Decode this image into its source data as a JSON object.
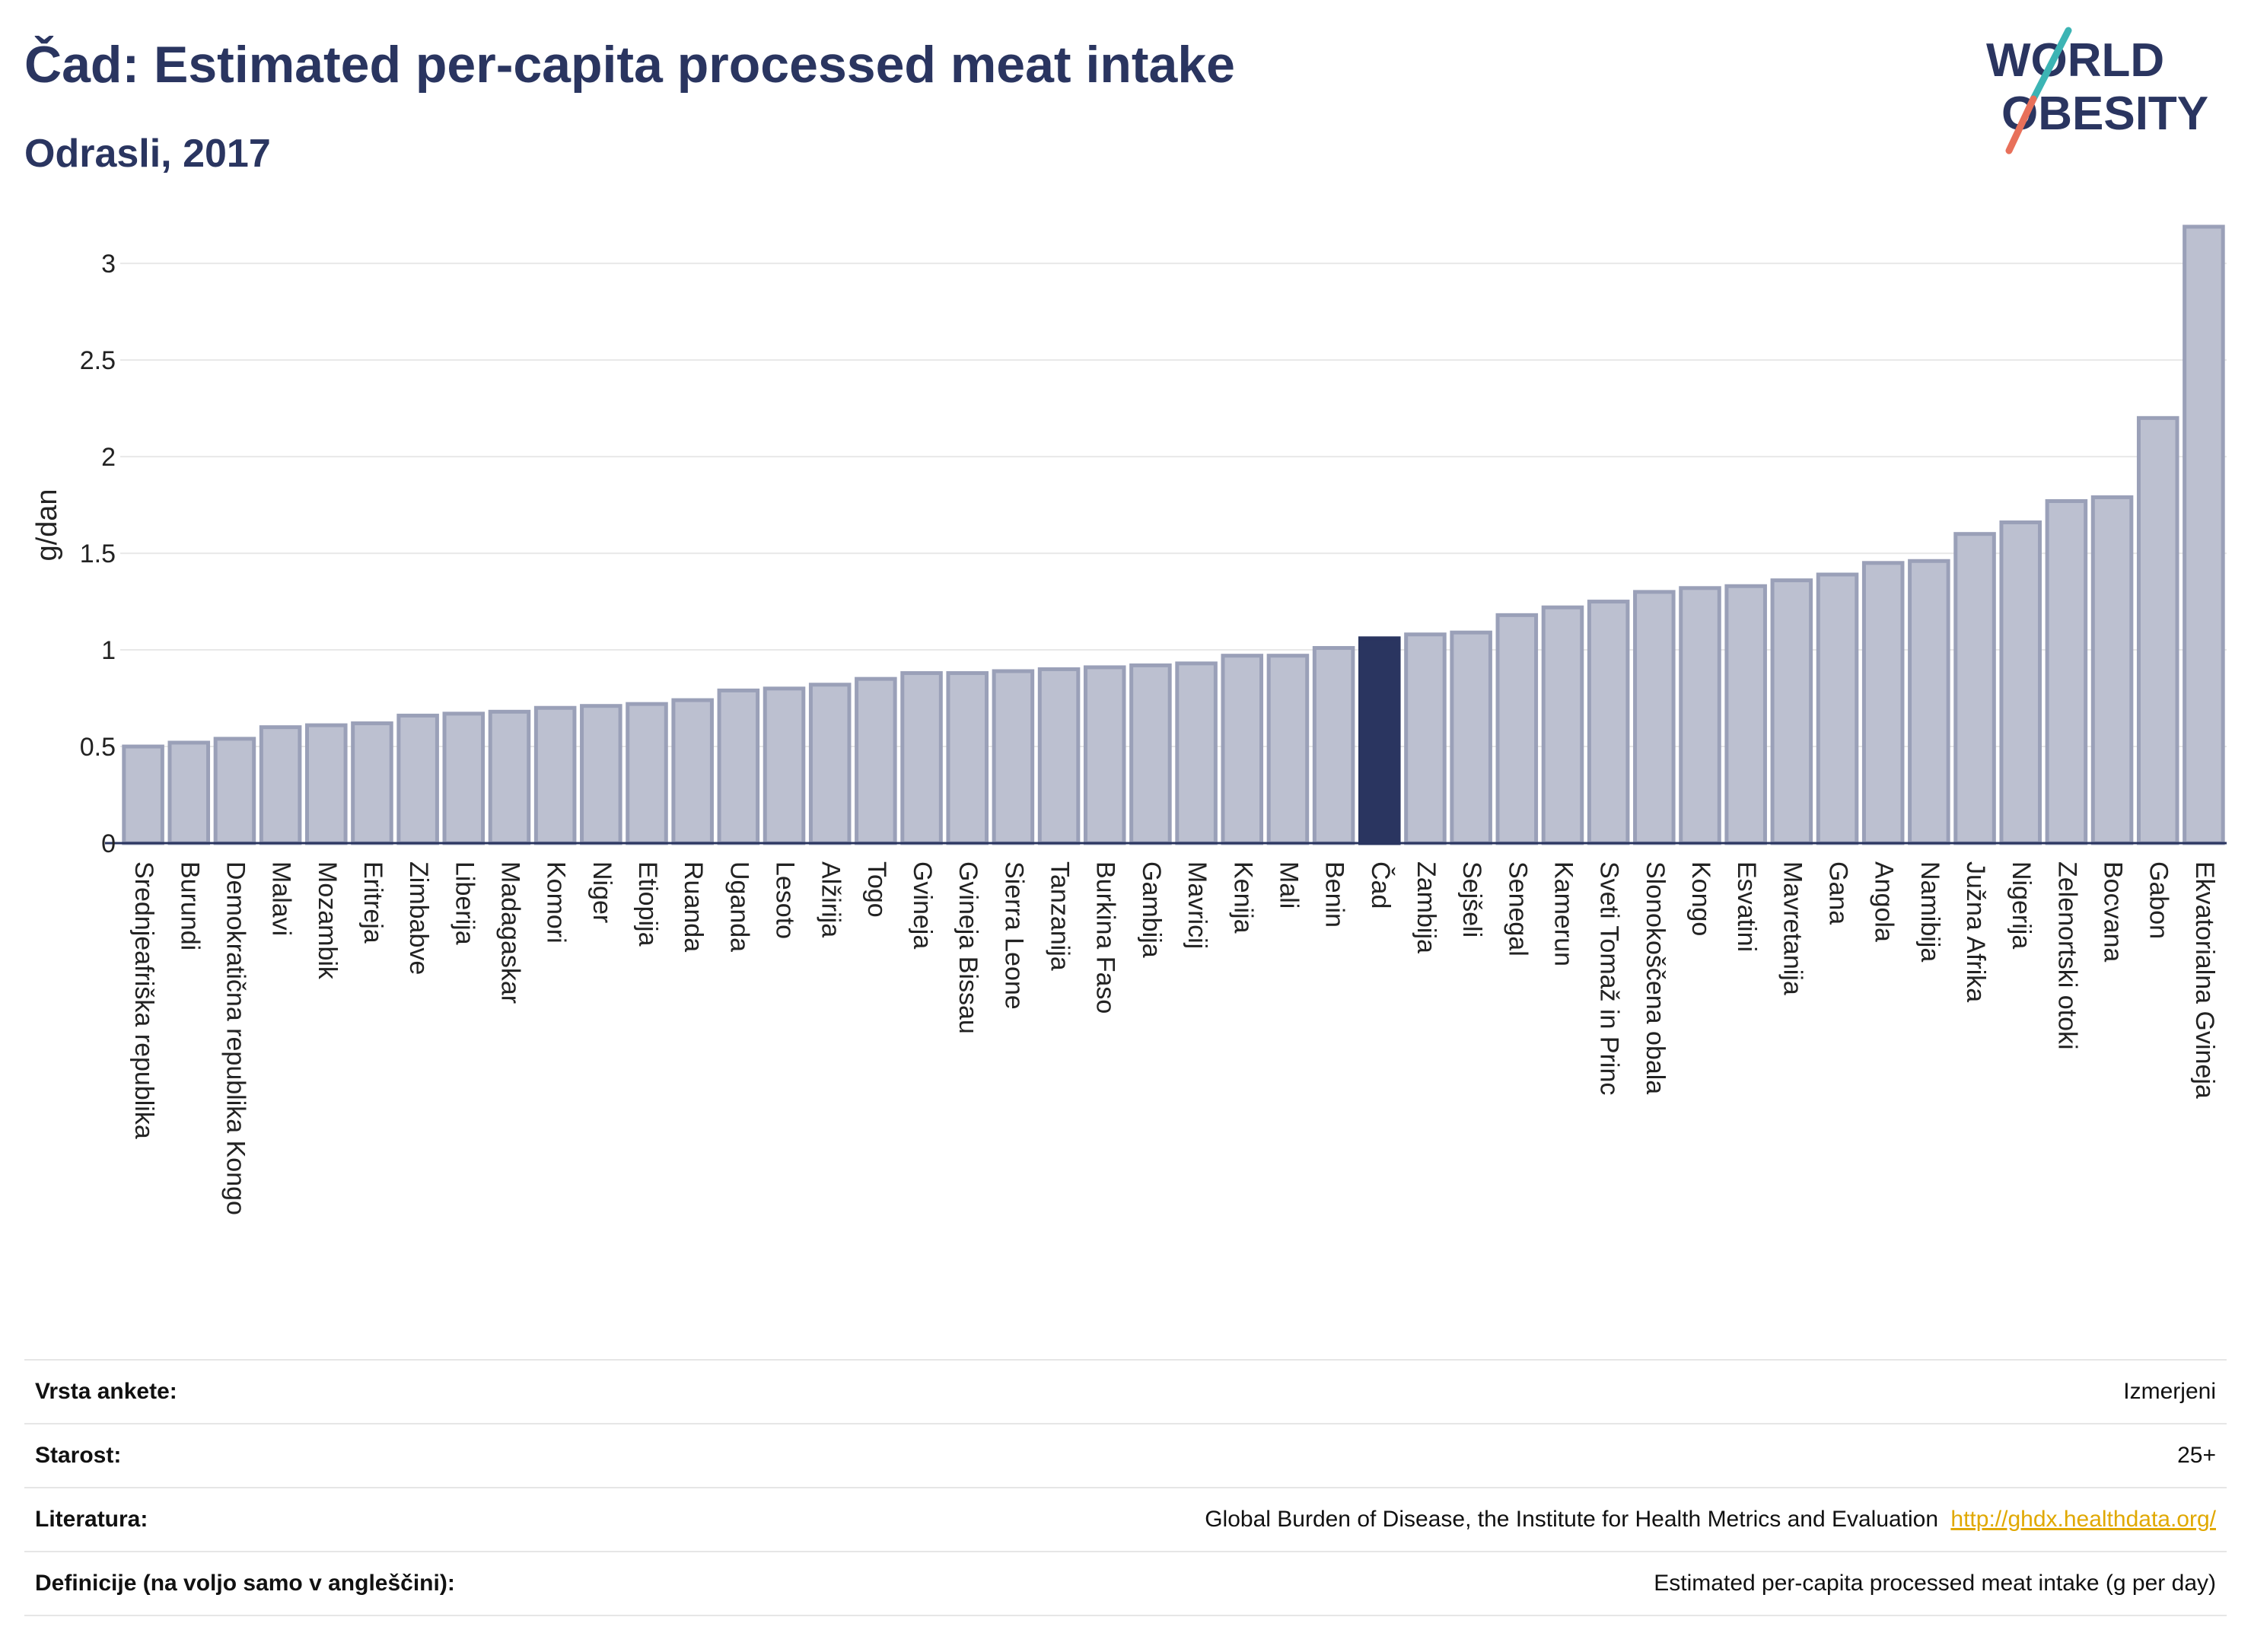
{
  "header": {
    "title": "Čad: Estimated per-capita processed meat intake",
    "subtitle": "Odrasli, 2017"
  },
  "logo": {
    "line1": "WORLD",
    "line2": "OBESITY"
  },
  "colors": {
    "bar": "#bcc0d0",
    "bar_border": "#9aa0b8",
    "highlight": "#2a3560",
    "text": "#2a3560",
    "logo_teal": "#3cb4b4",
    "logo_coral": "#e8705a",
    "link": "#e0a800"
  },
  "chart_data": {
    "type": "bar",
    "title": "Čad: Estimated per-capita processed meat intake",
    "subtitle": "Odrasli, 2017",
    "ylabel": "g/dan",
    "xlabel": "",
    "ylim": [
      0,
      3.3
    ],
    "yticks": [
      0,
      0.5,
      1,
      1.5,
      2,
      2.5,
      3
    ],
    "ytick_labels": [
      "0",
      "0.5",
      "1",
      "1.5",
      "2",
      "2.5",
      "3"
    ],
    "grid": true,
    "highlight": "Čad",
    "categories": [
      "Srednjeafriška republika",
      "Burundi",
      "Demokratična republika Kongo",
      "Malavi",
      "Mozambik",
      "Eritreja",
      "Zimbabve",
      "Liberija",
      "Madagaskar",
      "Komori",
      "Niger",
      "Etiopija",
      "Ruanda",
      "Uganda",
      "Lesoto",
      "Alžirija",
      "Togo",
      "Gvineja",
      "Gvineja Bissau",
      "Sierra Leone",
      "Tanzanija",
      "Burkina Faso",
      "Gambija",
      "Mavricij",
      "Kenija",
      "Mali",
      "Benin",
      "Čad",
      "Zambija",
      "Sejšeli",
      "Senegal",
      "Kamerun",
      "Sveti Tomaž in Princ",
      "Slonokoščena obala",
      "Kongo",
      "Esvatini",
      "Mavretanija",
      "Gana",
      "Angola",
      "Namibija",
      "Južna Afrika",
      "Nigerija",
      "Zelenortski otoki",
      "Bocvana",
      "Gabon",
      "Ekvatorialna Gvineja"
    ],
    "values": [
      0.5,
      0.52,
      0.54,
      0.6,
      0.61,
      0.62,
      0.66,
      0.67,
      0.68,
      0.7,
      0.71,
      0.72,
      0.74,
      0.79,
      0.8,
      0.82,
      0.85,
      0.88,
      0.88,
      0.89,
      0.9,
      0.91,
      0.92,
      0.93,
      0.97,
      0.97,
      1.01,
      1.06,
      1.08,
      1.09,
      1.18,
      1.22,
      1.25,
      1.3,
      1.32,
      1.33,
      1.36,
      1.39,
      1.45,
      1.46,
      1.6,
      1.66,
      1.77,
      1.79,
      2.2,
      3.19
    ]
  },
  "meta": {
    "survey_label": "Vrsta ankete:",
    "survey_value": "Izmerjeni",
    "age_label": "Starost:",
    "age_value": "25+",
    "ref_label": "Literatura:",
    "ref_value": "Global Burden of Disease, the Institute for Health Metrics and Evaluation",
    "ref_link": "http://ghdx.healthdata.org/",
    "def_label": "Definicije (na voljo samo v angleščini):",
    "def_value": "Estimated per-capita processed meat intake (g per day)"
  }
}
